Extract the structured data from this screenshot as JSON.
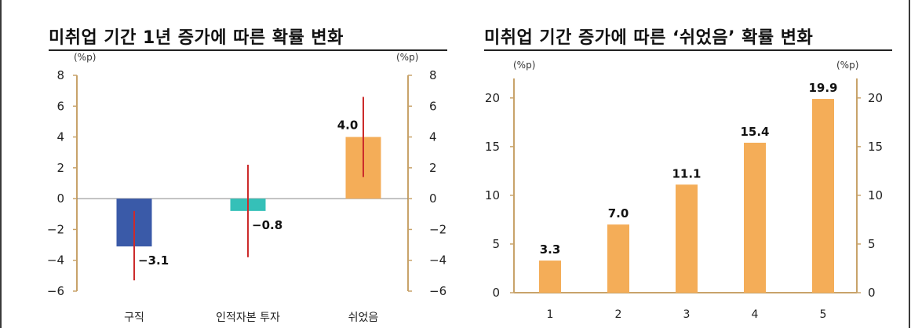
{
  "titles": {
    "left": "미취업 기간 1년 증가에 따른 확률 변화",
    "right": "미취업 기간 증가에 따른 ‘쉬었음’ 확률 변화"
  },
  "chart_data": [
    {
      "type": "bar",
      "title": "미취업 기간 1년 증가에 따른 확률 변화",
      "unit_label": "(%p)",
      "categories": [
        "구직",
        "인적자본 투자",
        "쉬었음"
      ],
      "values": [
        -3.1,
        -0.8,
        4.0
      ],
      "value_labels": [
        "−3.1",
        "−0.8",
        "4.0"
      ],
      "error_bars": [
        {
          "low": -5.3,
          "high": -0.8
        },
        {
          "low": -3.8,
          "high": 2.2
        },
        {
          "low": 1.4,
          "high": 6.6
        }
      ],
      "bar_colors": [
        "#3a5aa8",
        "#35c0b8",
        "#f4ad58"
      ],
      "error_color": "#cc2b2b",
      "ylim": [
        -6,
        8
      ],
      "yticks": [
        -6,
        -4,
        -2,
        0,
        2,
        4,
        6,
        8
      ],
      "ytick_labels": [
        "−6",
        "−4",
        "−2",
        "0",
        "2",
        "4",
        "6",
        "8"
      ],
      "axes": "left-and-right",
      "grid": false
    },
    {
      "type": "bar",
      "title": "미취업 기간 증가에 따른 ‘쉬었음’ 확률 변화",
      "unit_label": "(%p)",
      "categories": [
        "1",
        "2",
        "3",
        "4",
        "5"
      ],
      "values": [
        3.3,
        7.0,
        11.1,
        15.4,
        19.9
      ],
      "value_labels": [
        "3.3",
        "7.0",
        "11.1",
        "15.4",
        "19.9"
      ],
      "bar_color": "#f4ad58",
      "ylim": [
        0,
        22
      ],
      "yticks": [
        0,
        5,
        10,
        15,
        20
      ],
      "ytick_labels": [
        "0",
        "5",
        "10",
        "15",
        "20"
      ],
      "axes": "left-and-right",
      "grid": false
    }
  ],
  "colors": {
    "axis": "#c8a36a",
    "zero_line": "#888888"
  }
}
